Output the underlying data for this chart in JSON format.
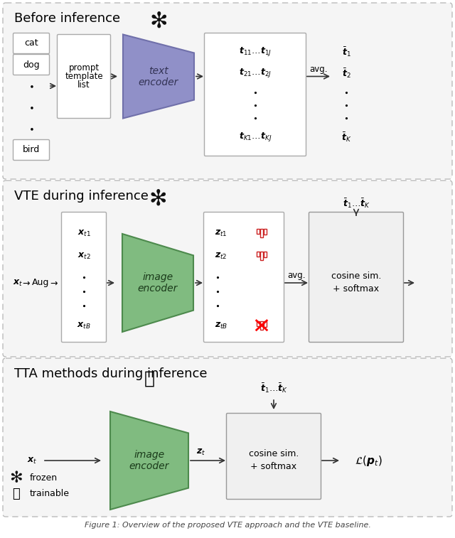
{
  "bg": "#ffffff",
  "panel_bg": "#f5f5f5",
  "dash_color": "#bbbbbb",
  "title1": "Before inference",
  "title2": "VTE during inference",
  "title3": "TTA methods during inference",
  "text_enc_fc": "#9090c8",
  "text_enc_ec": "#7070aa",
  "img_enc_fc": "#80bb80",
  "img_enc_ec": "#4d8a4d",
  "box_fc": "#ffffff",
  "box_ec": "#aaaaaa",
  "cosine_fc": "#f0f0f0",
  "cosine_ec": "#999999",
  "arrow_c": "#333333",
  "red": "#cc2222",
  "caption": "Figure 1: Overview of the proposed VTE approach and the baseline"
}
